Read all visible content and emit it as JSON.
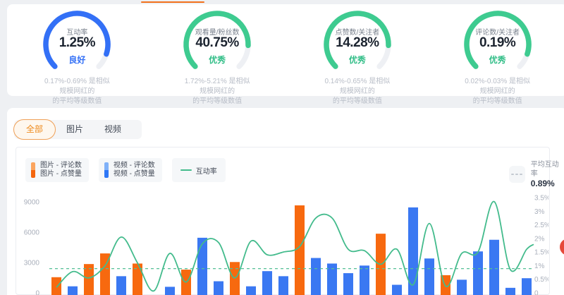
{
  "gauges": [
    {
      "label": "互动率",
      "value": "1.25%",
      "rating": "良好",
      "rating_color": "#3370f6",
      "arc_color": "#3370f6",
      "fill": 0.9,
      "desc_line1": "0.17%-0.69% 是相似规模网红的",
      "desc_line2": "的平均等级数值"
    },
    {
      "label": "观看量/粉丝数",
      "value": "40.75%",
      "rating": "优秀",
      "rating_color": "#2fbd86",
      "arc_color": "#3ecb90",
      "fill": 0.84,
      "desc_line1": "1.72%-5.21% 是相似规模网红的",
      "desc_line2": "的平均等级数值"
    },
    {
      "label": "点赞数/关注者",
      "value": "14.28%",
      "rating": "优秀",
      "rating_color": "#2fbd86",
      "arc_color": "#3ecb90",
      "fill": 0.84,
      "desc_line1": "0.14%-0.65% 是相似规模网红的",
      "desc_line2": "的平均等级数值"
    },
    {
      "label": "评论数/关注者",
      "value": "0.19%",
      "rating": "优秀",
      "rating_color": "#2fbd86",
      "arc_color": "#3ecb90",
      "fill": 0.9,
      "desc_line1": "0.02%-0.03% 是相似规模网红的",
      "desc_line2": "的平均等级数值"
    }
  ],
  "tabs": {
    "items": [
      {
        "label": "全部",
        "active": true
      },
      {
        "label": "图片",
        "active": false
      },
      {
        "label": "视频",
        "active": false
      }
    ]
  },
  "legend": {
    "image_group": {
      "line1": "图片 - 评论数",
      "line2": "图片 - 点赞量",
      "color_top": "#fba55f",
      "color_bottom": "#f4660e"
    },
    "video_group": {
      "line1": "视频 - 评论数",
      "line2": "视频 - 点赞量",
      "color_top": "#7fb1f9",
      "color_bottom": "#2e77f6"
    },
    "rate_line": {
      "label": "互动率",
      "color": "#43bb8c"
    },
    "average": {
      "label": "平均互动率",
      "value": "0.89%"
    }
  },
  "chart_data": {
    "type": "bar+line",
    "title": "",
    "left_axis": {
      "label": "",
      "ticks": [
        "9000",
        "6000",
        "3000",
        "0"
      ],
      "min": 0,
      "max": 9000,
      "tick_color": "#a9afbb"
    },
    "right_axis": {
      "label": "",
      "ticks": [
        "3.5%",
        "3%",
        "2.5%",
        "2%",
        "1.5%",
        "1%",
        "0.5%",
        "0"
      ],
      "min": 0,
      "max": 3.5,
      "tick_color": "#a9afbb"
    },
    "grid": false,
    "legend_position": "top",
    "colors": {
      "image": "#f7690f",
      "video": "#3a78f2",
      "line": "#43bb8c",
      "average": "#54c096"
    },
    "bars": [
      {
        "kind": "image",
        "value": 1550
      },
      {
        "kind": "video",
        "value": 650
      },
      {
        "kind": "image",
        "value": 2850
      },
      {
        "kind": "image",
        "value": 3900
      },
      {
        "kind": "video",
        "value": 1650
      },
      {
        "kind": "image",
        "value": 2900
      },
      {
        "kind": "video",
        "value": 0
      },
      {
        "kind": "video",
        "value": 600
      },
      {
        "kind": "image",
        "value": 2300
      },
      {
        "kind": "video",
        "value": 5450
      },
      {
        "kind": "video",
        "value": 1150
      },
      {
        "kind": "image",
        "value": 3050
      },
      {
        "kind": "video",
        "value": 650
      },
      {
        "kind": "video",
        "value": 2150
      },
      {
        "kind": "video",
        "value": 1650
      },
      {
        "kind": "image",
        "value": 8650
      },
      {
        "kind": "video",
        "value": 3450
      },
      {
        "kind": "video",
        "value": 2900
      },
      {
        "kind": "video",
        "value": 1950
      },
      {
        "kind": "video",
        "value": 2700
      },
      {
        "kind": "image",
        "value": 5850
      },
      {
        "kind": "video",
        "value": 800
      },
      {
        "kind": "video",
        "value": 8450
      },
      {
        "kind": "video",
        "value": 3400
      },
      {
        "kind": "image",
        "value": 1750
      },
      {
        "kind": "video",
        "value": 1300
      },
      {
        "kind": "video",
        "value": 4100
      },
      {
        "kind": "video",
        "value": 5250
      },
      {
        "kind": "video",
        "value": 500
      },
      {
        "kind": "video",
        "value": 1450
      }
    ],
    "line": {
      "name": "互动率",
      "values_pct": [
        0.2,
        0.78,
        0.55,
        1.0,
        2.05,
        1.1,
        0.07,
        1.45,
        0.4,
        1.8,
        1.85,
        0.55,
        1.9,
        1.4,
        1.5,
        1.7,
        2.75,
        2.75,
        1.6,
        1.55,
        1.05,
        1.6,
        0.3,
        2.55,
        0.25,
        1.45,
        1.5,
        3.35,
        0.85,
        1.6
      ],
      "tail_pct": 1.78
    },
    "average_line": {
      "name": "平均互动率",
      "value_pct": 0.89
    }
  }
}
